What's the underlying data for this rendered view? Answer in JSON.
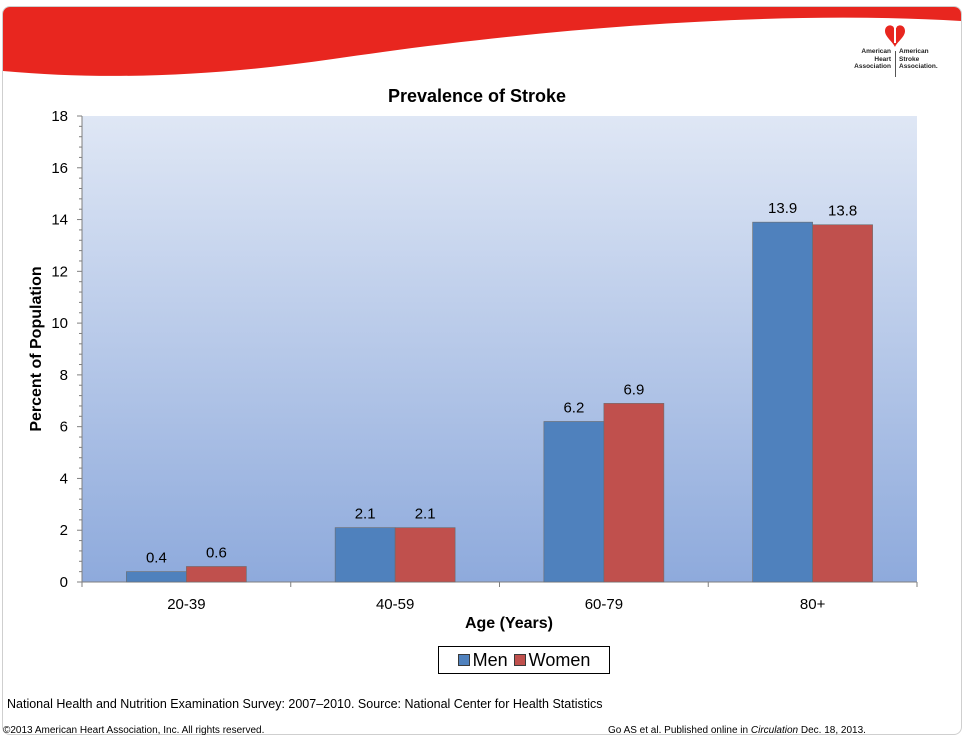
{
  "logo": {
    "heart_association": "American\nHeart\nAssociation",
    "stroke_association": "American\nStroke\nAssociation."
  },
  "colors": {
    "banner_red": "#e8261f",
    "men": "#4f81bd",
    "women": "#c0504d"
  },
  "chart_data": {
    "type": "bar",
    "title": "Prevalence of Stroke",
    "xlabel": "Age (Years)",
    "ylabel": "Percent of Population",
    "categories": [
      "20-39",
      "40-59",
      "60-79",
      "80+"
    ],
    "series": [
      {
        "name": "Men",
        "values": [
          0.4,
          2.1,
          6.2,
          13.9
        ],
        "color": "#4f81bd"
      },
      {
        "name": "Women",
        "values": [
          0.6,
          2.1,
          6.9,
          13.8
        ],
        "color": "#c0504d"
      }
    ],
    "ylim": [
      0,
      18
    ],
    "yticks": [
      0,
      2,
      4,
      6,
      8,
      10,
      12,
      14,
      16,
      18
    ],
    "legend_position": "bottom-center",
    "grid": false
  },
  "source_note": "National Health and Nutrition Examination Survey: 2007–2010. Source: National Center for Health Statistics",
  "footer": {
    "copyright": "©2013 American Heart Association, Inc. All rights reserved.",
    "citation_prefix": "Go AS et al. Published online in ",
    "citation_journal": "Circulation",
    "citation_suffix": " Dec. 18, 2013."
  }
}
